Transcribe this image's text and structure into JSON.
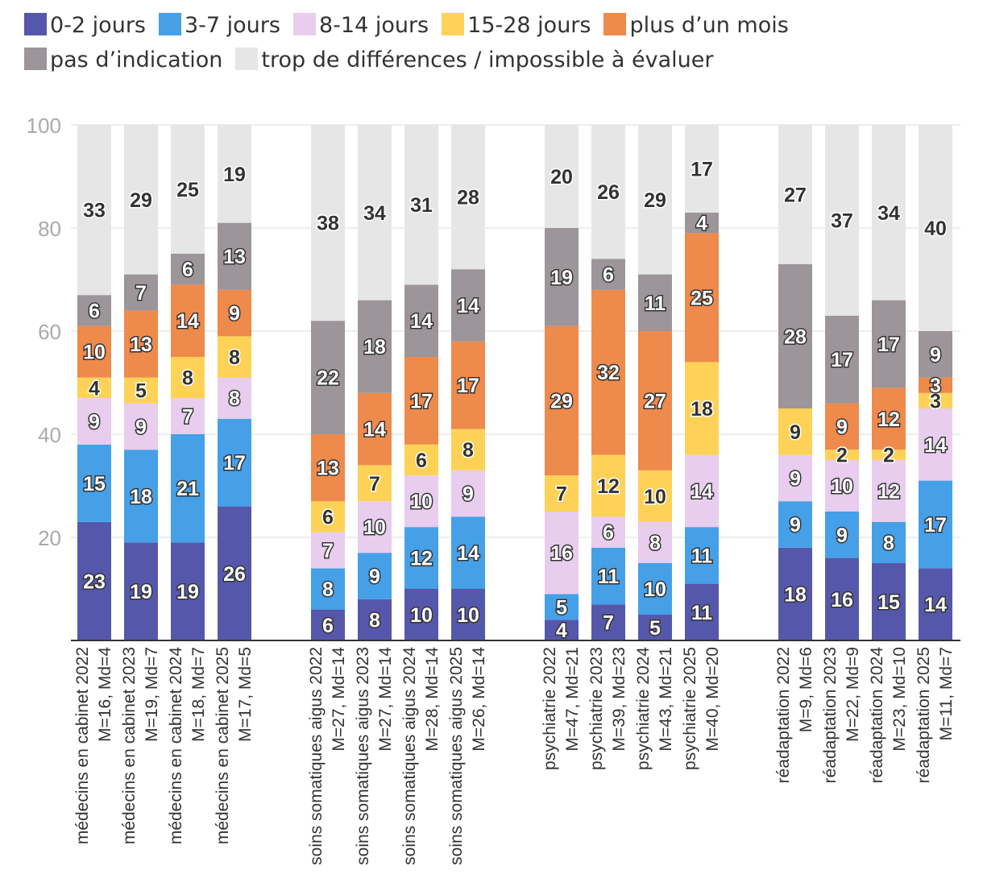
{
  "chart_data": {
    "type": "bar",
    "stacked": true,
    "ylim": [
      0,
      100
    ],
    "yticks": [
      20,
      40,
      60,
      80,
      100
    ],
    "legend_position": "top",
    "series": [
      {
        "name": "0-2 jours",
        "color": "#5558aa"
      },
      {
        "name": "3-7 jours",
        "color": "#45a0e8"
      },
      {
        "name": "8-14 jours",
        "color": "#e8cdee"
      },
      {
        "name": "15-28 jours",
        "color": "#fdd257"
      },
      {
        "name": "plus d’un mois",
        "color": "#ee8a4b"
      },
      {
        "name": "pas d’indication",
        "color": "#9c9599"
      },
      {
        "name": "trop de différences / impossible à évaluer",
        "color": "#e6e6e6"
      }
    ],
    "categories": [
      {
        "label": "médecins en cabinet 2022",
        "stats": "M=16, Md=4",
        "values": [
          23,
          15,
          9,
          4,
          10,
          6,
          33
        ]
      },
      {
        "label": "médecins en cabinet 2023",
        "stats": "M=19, Md=7",
        "values": [
          19,
          18,
          9,
          5,
          13,
          7,
          29
        ]
      },
      {
        "label": "médecins en cabinet 2024",
        "stats": "M=18, Md=7",
        "values": [
          19,
          21,
          7,
          8,
          14,
          6,
          25
        ]
      },
      {
        "label": "médecins en cabinet 2025",
        "stats": "M=17, Md=5",
        "values": [
          26,
          17,
          8,
          8,
          9,
          13,
          19
        ]
      },
      {
        "label": "soins somatiques aigus 2022",
        "stats": "M=27, Md=14",
        "values": [
          6,
          8,
          7,
          6,
          13,
          22,
          38
        ]
      },
      {
        "label": "soins somatiques aigus 2023",
        "stats": "M=27, Md=14",
        "values": [
          8,
          9,
          10,
          7,
          14,
          18,
          34
        ]
      },
      {
        "label": "soins somatiques aigus 2024",
        "stats": "M=28, Md=14",
        "values": [
          10,
          12,
          10,
          6,
          17,
          14,
          31
        ]
      },
      {
        "label": "soins somatiques aigus 2025",
        "stats": "M=26, Md=14",
        "values": [
          10,
          14,
          9,
          8,
          17,
          14,
          28
        ]
      },
      {
        "label": "psychiatrie 2022",
        "stats": "M=47, Md=21",
        "values": [
          4,
          5,
          16,
          7,
          29,
          19,
          20
        ]
      },
      {
        "label": "psychiatrie 2023",
        "stats": "M=39, Md=23",
        "values": [
          7,
          11,
          6,
          12,
          32,
          6,
          26
        ]
      },
      {
        "label": "psychiatrie 2024",
        "stats": "M=43, Md=21",
        "values": [
          5,
          10,
          8,
          10,
          27,
          11,
          29
        ]
      },
      {
        "label": "psychiatrie 2025",
        "stats": "M=40, Md=20",
        "values": [
          11,
          11,
          14,
          18,
          25,
          4,
          17
        ]
      },
      {
        "label": "réadaptation 2022",
        "stats": "M=9, Md=6",
        "values": [
          18,
          9,
          9,
          9,
          0,
          28,
          27
        ]
      },
      {
        "label": "réadaptation 2023",
        "stats": "M=22, Md=9",
        "values": [
          16,
          9,
          10,
          2,
          9,
          17,
          37
        ]
      },
      {
        "label": "réadaptation 2024",
        "stats": "M=23, Md=10",
        "values": [
          15,
          8,
          12,
          2,
          12,
          17,
          34
        ]
      },
      {
        "label": "réadaptation 2025",
        "stats": "M=11, Md=7",
        "values": [
          14,
          17,
          14,
          3,
          3,
          9,
          40
        ]
      }
    ]
  }
}
